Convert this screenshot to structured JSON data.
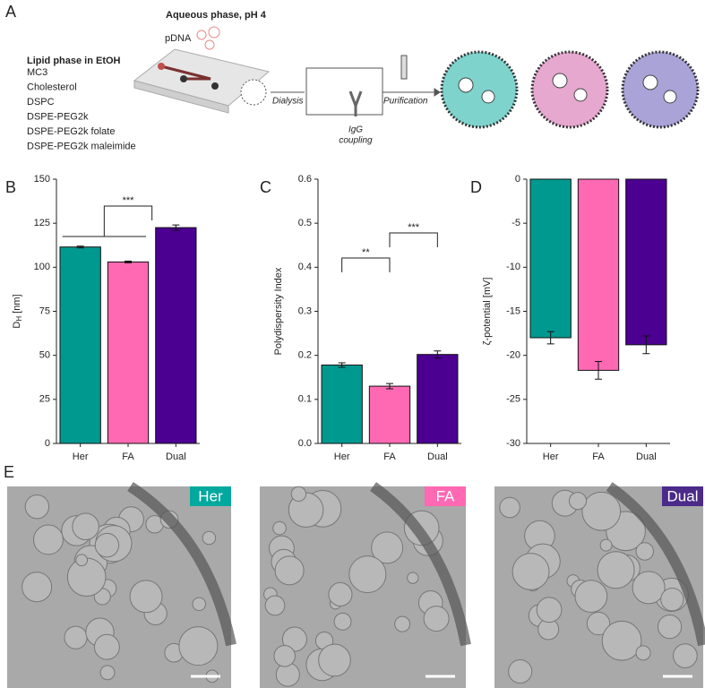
{
  "panel_a": {
    "label": "A",
    "aqueous_title": "Aqueous phase, pH 4",
    "pdna": "pDNA",
    "lipid_title": "Lipid phase in EtOH",
    "lipids": [
      "MC3",
      "Cholesterol",
      "DSPC",
      "DSPE-PEG2k",
      "DSPE-PEG2k folate",
      "DSPE-PEG2k maleimide"
    ],
    "steps": [
      "Dialysis",
      "Purification"
    ],
    "coupling": [
      "IgG",
      "coupling"
    ]
  },
  "chart_data": [
    {
      "type": "bar",
      "panel": "B",
      "ylabel": "D",
      "ylabel_subscript": "H",
      "ylabel_unit": "[nm]",
      "categories": [
        "Her",
        "FA",
        "Dual"
      ],
      "values": [
        111.5,
        103,
        122.5
      ],
      "errors": [
        0.5,
        0.5,
        1.5
      ],
      "colors": [
        "#009990",
        "#ff69b4",
        "#4b0091"
      ],
      "ylim": [
        0,
        150
      ],
      "yticks": [
        0,
        25,
        50,
        75,
        100,
        125,
        150
      ],
      "annotations": [
        "***"
      ]
    },
    {
      "type": "bar",
      "panel": "C",
      "ylabel": "Polydispersity Index",
      "categories": [
        "Her",
        "FA",
        "Dual"
      ],
      "values": [
        0.178,
        0.13,
        0.202
      ],
      "errors": [
        0.005,
        0.006,
        0.008
      ],
      "colors": [
        "#009990",
        "#ff69b4",
        "#4b0091"
      ],
      "ylim": [
        0,
        0.6
      ],
      "yticks": [
        {
          "value": 0,
          "label": "0.0"
        },
        0.1,
        0.2,
        0.3,
        0.4,
        0.5,
        0.6
      ],
      "annotations": [
        "**",
        "***"
      ]
    },
    {
      "type": "bar",
      "panel": "D",
      "ylabel": "ζ-potential [mV]",
      "categories": [
        "Her",
        "FA",
        "Dual"
      ],
      "values": [
        -18,
        -21.7,
        -18.8
      ],
      "errors": [
        0.7,
        1,
        1
      ],
      "colors": [
        "#009990",
        "#ff69b4",
        "#4b0091"
      ],
      "ylim": [
        -30,
        0
      ],
      "yticks": [
        -30,
        -25,
        -20,
        -15,
        -10,
        -5,
        0
      ],
      "annotations": []
    }
  ],
  "panel_e": {
    "label": "E",
    "images": [
      "Her",
      "FA",
      "Dual"
    ]
  }
}
